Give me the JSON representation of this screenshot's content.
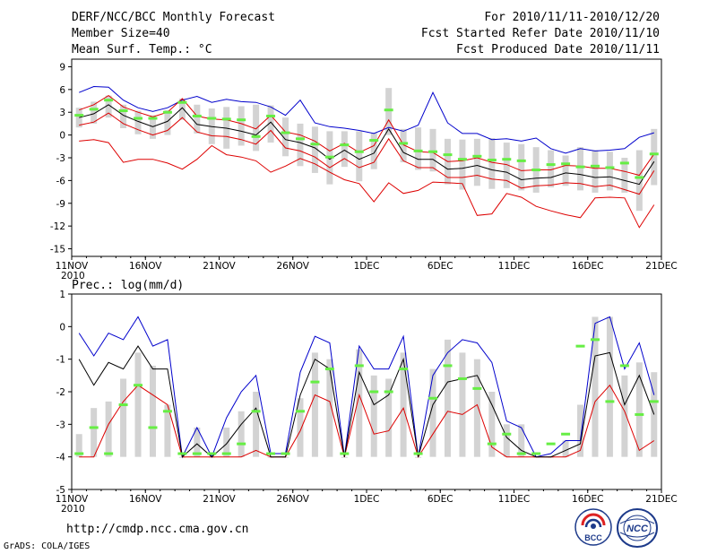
{
  "header": {
    "title": "DERF/NCC/BCC Monthly Forecast",
    "member_size": "Member Size=40",
    "variable": "Mean Surf. Temp.: °C",
    "period": "For 2010/11/11-2010/12/20",
    "fcst_started": "Fcst Started Refer Date 2010/11/10",
    "fcst_produced": "Fcst Produced Date 2010/11/11"
  },
  "footer": {
    "url": "http://cmdp.ncc.cma.gov.cn",
    "credit": "GrADS: COLA/IGES",
    "logo_left_text": "BCC",
    "logo_right_text": "NCC"
  },
  "colors": {
    "box": "#d3d3d3",
    "mean": "#000000",
    "upper": "#0000cc",
    "lower": "#dd0000",
    "obs": "#66ee44"
  },
  "chart_data": [
    {
      "type": "line",
      "title": "Mean Surf. Temp.: °C",
      "ylim": [
        -16,
        10
      ],
      "yticks": [
        9,
        6,
        3,
        0,
        -3,
        -6,
        -9,
        -12,
        -15
      ],
      "xticks": [
        "11NOV",
        "16NOV",
        "21NOV",
        "26NOV",
        "1DEC",
        "6DEC",
        "11DEC",
        "16DEC",
        "21DEC"
      ],
      "xtick_year": "2010",
      "days": 40,
      "series": [
        {
          "name": "ensemble max",
          "values": [
            5.6,
            6.4,
            6.3,
            4.6,
            3.6,
            3.1,
            3.6,
            4.6,
            5.1,
            4.3,
            4.7,
            4.4,
            4.3,
            3.7,
            2.6,
            4.6,
            1.6,
            1.1,
            0.9,
            0.6,
            0.2,
            1.0,
            0.5,
            1.3,
            5.6,
            1.6,
            0.2,
            0.2,
            -0.6,
            -0.5,
            -0.8,
            -0.4,
            -1.8,
            -2.4,
            -1.8,
            -2.1,
            -2.0,
            -1.8,
            -0.3,
            0.3
          ]
        },
        {
          "name": "ensemble min",
          "values": [
            -0.8,
            -0.6,
            -1.0,
            -3.6,
            -3.2,
            -3.2,
            -3.7,
            -4.5,
            -3.2,
            -1.4,
            -2.6,
            -2.9,
            -3.4,
            -4.9,
            -4.1,
            -3.1,
            -3.8,
            -4.9,
            -5.9,
            -6.4,
            -8.8,
            -6.3,
            -7.7,
            -7.3,
            -6.2,
            -6.3,
            -6.4,
            -10.6,
            -10.4,
            -7.7,
            -8.2,
            -9.4,
            -10.0,
            -10.5,
            -10.9,
            -8.3,
            -8.2,
            -8.3,
            -12.2,
            -9.2
          ]
        },
        {
          "name": "ensemble mean",
          "values": [
            2.3,
            2.8,
            4.0,
            2.6,
            1.8,
            1.1,
            1.8,
            3.6,
            1.4,
            1.1,
            0.9,
            0.5,
            0.0,
            1.7,
            -0.6,
            -1.0,
            -1.7,
            -3.2,
            -2.0,
            -3.2,
            -2.4,
            0.8,
            -2.3,
            -3.2,
            -3.2,
            -4.5,
            -4.4,
            -4.0,
            -4.6,
            -4.9,
            -5.9,
            -5.7,
            -5.6,
            -5.0,
            -5.2,
            -5.6,
            -5.5,
            -6.0,
            -6.5,
            -3.5
          ]
        },
        {
          "name": "mean + sd",
          "values": [
            3.3,
            4.0,
            5.2,
            3.7,
            3.0,
            2.4,
            3.0,
            4.8,
            2.5,
            2.1,
            2.0,
            1.5,
            0.8,
            2.6,
            0.4,
            0.0,
            -0.8,
            -2.1,
            -1.1,
            -2.3,
            -1.4,
            2.0,
            -1.3,
            -2.2,
            -2.3,
            -3.5,
            -3.4,
            -3.0,
            -3.6,
            -3.9,
            -4.7,
            -4.6,
            -4.6,
            -4.0,
            -4.1,
            -4.4,
            -4.4,
            -4.8,
            -5.3,
            -2.5
          ]
        },
        {
          "name": "mean - sd",
          "values": [
            1.3,
            1.7,
            2.9,
            1.5,
            0.7,
            0.0,
            0.6,
            2.3,
            0.4,
            -0.1,
            -0.2,
            -0.6,
            -1.2,
            0.6,
            -1.7,
            -2.1,
            -2.9,
            -4.3,
            -3.1,
            -4.3,
            -3.6,
            -0.5,
            -3.4,
            -4.3,
            -4.3,
            -5.6,
            -5.6,
            -5.3,
            -5.8,
            -6.0,
            -7.0,
            -6.7,
            -6.6,
            -6.3,
            -6.4,
            -6.8,
            -6.6,
            -7.2,
            -7.8,
            -4.7
          ]
        },
        {
          "name": "observation",
          "values": [
            2.6,
            3.4,
            4.6,
            3.2,
            2.2,
            2.2,
            3.0,
            4.3,
            2.5,
            2.2,
            2.1,
            2.0,
            -0.2,
            2.5,
            0.3,
            -0.5,
            -1.2,
            -2.9,
            -1.3,
            -2.2,
            -0.7,
            3.3,
            -1.1,
            -2.1,
            -2.2,
            -2.6,
            -3.2,
            -2.8,
            -3.3,
            -3.2,
            -3.4,
            -4.6,
            -3.9,
            -3.8,
            -4.2,
            -4.1,
            -4.3,
            -3.7,
            -5.6,
            -2.5
          ]
        }
      ],
      "box_upper": [
        3.6,
        4.4,
        5.2,
        4.0,
        3.2,
        2.6,
        3.3,
        4.8,
        4.0,
        3.5,
        3.7,
        3.8,
        4.0,
        3.9,
        2.3,
        1.5,
        1.1,
        0.5,
        0.5,
        0.5,
        0.3,
        6.2,
        0.8,
        1.0,
        0.8,
        -0.5,
        -0.6,
        -0.5,
        -0.4,
        -1.0,
        -1.2,
        -1.6,
        -2.0,
        -2.7,
        -1.6,
        -2.0,
        -2.2,
        -3.0,
        -2.0,
        0.8
      ],
      "box_lower": [
        1.0,
        1.5,
        2.3,
        0.9,
        0.1,
        -0.5,
        0.0,
        2.0,
        0.2,
        -1.2,
        -1.8,
        -1.4,
        -2.1,
        -1.0,
        -2.8,
        -4.1,
        -5.0,
        -6.5,
        -4.2,
        -6.1,
        -4.5,
        0.0,
        -3.6,
        -4.6,
        -4.8,
        -6.5,
        -7.2,
        -6.7,
        -7.1,
        -7.0,
        -7.3,
        -7.6,
        -6.9,
        -6.7,
        -7.3,
        -7.6,
        -7.3,
        -7.6,
        -10.0,
        -6.6
      ]
    },
    {
      "type": "line",
      "title": "Prec.: log(mm/d)",
      "ylim": [
        -5,
        1
      ],
      "yticks": [
        1,
        0,
        -1,
        -2,
        -3,
        -4,
        -5
      ],
      "xticks": [
        "11NOV",
        "16NOV",
        "21NOV",
        "26NOV",
        "1DEC",
        "6DEC",
        "11DEC",
        "16DEC",
        "21DEC"
      ],
      "xtick_year": "2010",
      "days": 40,
      "series": [
        {
          "name": "ensemble max",
          "values": [
            -0.2,
            -0.9,
            -0.2,
            -0.4,
            0.3,
            -0.6,
            -0.4,
            -4.0,
            -3.1,
            -4.0,
            -2.8,
            -2.0,
            -1.5,
            -3.9,
            -3.9,
            -1.4,
            -0.3,
            -0.5,
            -4.0,
            -0.6,
            -1.3,
            -1.3,
            -0.3,
            -4.0,
            -1.5,
            -0.8,
            -0.4,
            -0.5,
            -1.1,
            -2.9,
            -3.1,
            -4.0,
            -3.9,
            -3.5,
            -3.5,
            0.1,
            0.3,
            -1.3,
            -0.5,
            -2.1
          ]
        },
        {
          "name": "ensemble min",
          "values": [
            -4.0,
            -4.0,
            -3.0,
            -2.3,
            -1.8,
            -2.1,
            -2.4,
            -4.0,
            -4.0,
            -4.0,
            -4.0,
            -4.0,
            -3.8,
            -4.0,
            -4.0,
            -3.2,
            -2.1,
            -2.3,
            -4.0,
            -2.1,
            -3.3,
            -3.2,
            -2.5,
            -4.0,
            -3.3,
            -2.6,
            -2.7,
            -2.4,
            -3.7,
            -4.0,
            -4.0,
            -4.0,
            -4.0,
            -4.0,
            -3.8,
            -2.3,
            -1.8,
            -2.6,
            -3.8,
            -3.5
          ]
        },
        {
          "name": "ensemble mean",
          "values": [
            -1.0,
            -1.8,
            -1.1,
            -1.3,
            -0.6,
            -1.3,
            -1.3,
            -4.0,
            -3.6,
            -4.0,
            -3.6,
            -3.0,
            -2.5,
            -4.0,
            -4.0,
            -2.1,
            -1.0,
            -1.3,
            -4.0,
            -1.4,
            -2.4,
            -2.1,
            -1.0,
            -4.0,
            -2.4,
            -1.7,
            -1.6,
            -1.5,
            -2.4,
            -3.4,
            -3.8,
            -4.0,
            -4.0,
            -3.8,
            -3.6,
            -0.9,
            -0.8,
            -2.4,
            -1.5,
            -2.7
          ]
        },
        {
          "name": "observation",
          "values": [
            -3.9,
            -3.1,
            -3.9,
            -2.4,
            -1.8,
            -3.1,
            -2.6,
            -3.9,
            -3.9,
            -3.9,
            -3.9,
            -3.6,
            -2.6,
            -3.9,
            -3.9,
            -2.6,
            -1.7,
            -1.3,
            -3.9,
            -1.2,
            -2.0,
            -2.0,
            -1.3,
            -3.9,
            -2.2,
            -1.2,
            -1.6,
            -1.9,
            -3.6,
            -3.3,
            -3.9,
            -3.9,
            -3.6,
            -3.3,
            -0.6,
            -0.4,
            -2.3,
            -1.2,
            -2.7,
            -2.3
          ]
        }
      ],
      "box_upper": [
        -3.3,
        -2.5,
        -2.3,
        -1.6,
        -0.8,
        -1.2,
        -2.4,
        -4.0,
        -3.1,
        -4.0,
        -3.1,
        -2.6,
        -2.0,
        -4.0,
        -4.0,
        -2.2,
        -0.8,
        -1.0,
        -4.0,
        -0.7,
        -1.5,
        -1.6,
        -0.8,
        -4.0,
        -1.3,
        -0.4,
        -0.8,
        -1.0,
        -2.0,
        -3.0,
        -3.0,
        -4.0,
        -4.0,
        -3.5,
        -2.4,
        0.3,
        0.3,
        -1.5,
        -1.1,
        -1.4
      ],
      "box_lower": [
        -4.0,
        -4.0,
        -4.0,
        -4.0,
        -4.0,
        -4.0,
        -4.0,
        -4.0,
        -4.0,
        -4.0,
        -4.0,
        -4.0,
        -4.0,
        -4.0,
        -4.0,
        -4.0,
        -4.0,
        -4.0,
        -4.0,
        -4.0,
        -4.0,
        -4.0,
        -4.0,
        -4.0,
        -4.0,
        -4.0,
        -4.0,
        -4.0,
        -4.0,
        -4.0,
        -4.0,
        -4.0,
        -4.0,
        -4.0,
        -4.0,
        -4.0,
        -4.0,
        -4.0,
        -4.0,
        -4.0
      ]
    }
  ]
}
